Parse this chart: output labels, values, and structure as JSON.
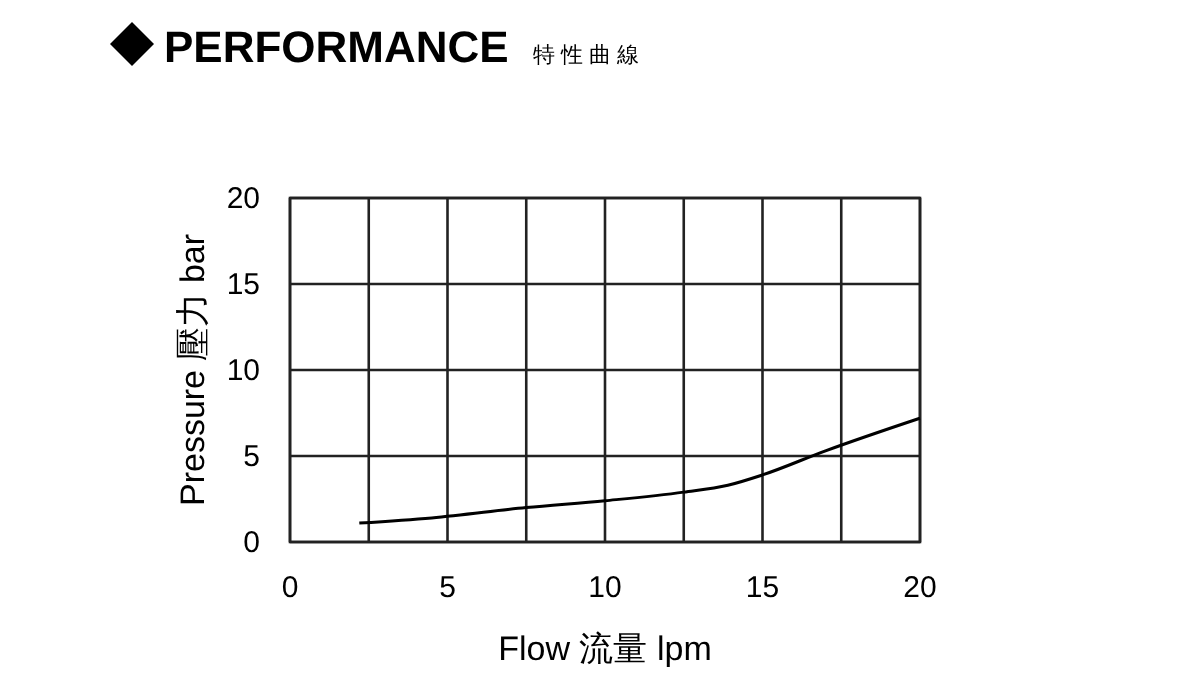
{
  "chart_data": {
    "type": "line",
    "title": "PERFORMANCE",
    "subtitle": "特性曲線",
    "xlabel": "Flow 流量 lpm",
    "ylabel": "Pressure 壓力 bar",
    "x": [
      2.2,
      4.5,
      7.5,
      10,
      12.5,
      13.9,
      15,
      17,
      20
    ],
    "series": [
      {
        "color": "#000000",
        "values": [
          1.1,
          1.4,
          2.0,
          2.4,
          2.9,
          3.3,
          3.9,
          5.3,
          7.2
        ]
      }
    ],
    "xlim": [
      0,
      20
    ],
    "ylim": [
      0,
      20
    ],
    "xticks": [
      0,
      {
        "value": 2.5,
        "label": null
      },
      5,
      {
        "value": 7.5,
        "label": null
      },
      10,
      {
        "value": 12.5,
        "label": null
      },
      15,
      {
        "value": 17.5,
        "label": null
      },
      20
    ],
    "yticks": [
      0,
      5,
      10,
      15,
      20
    ],
    "grid": true,
    "marker": "none",
    "line_style": "solid"
  }
}
